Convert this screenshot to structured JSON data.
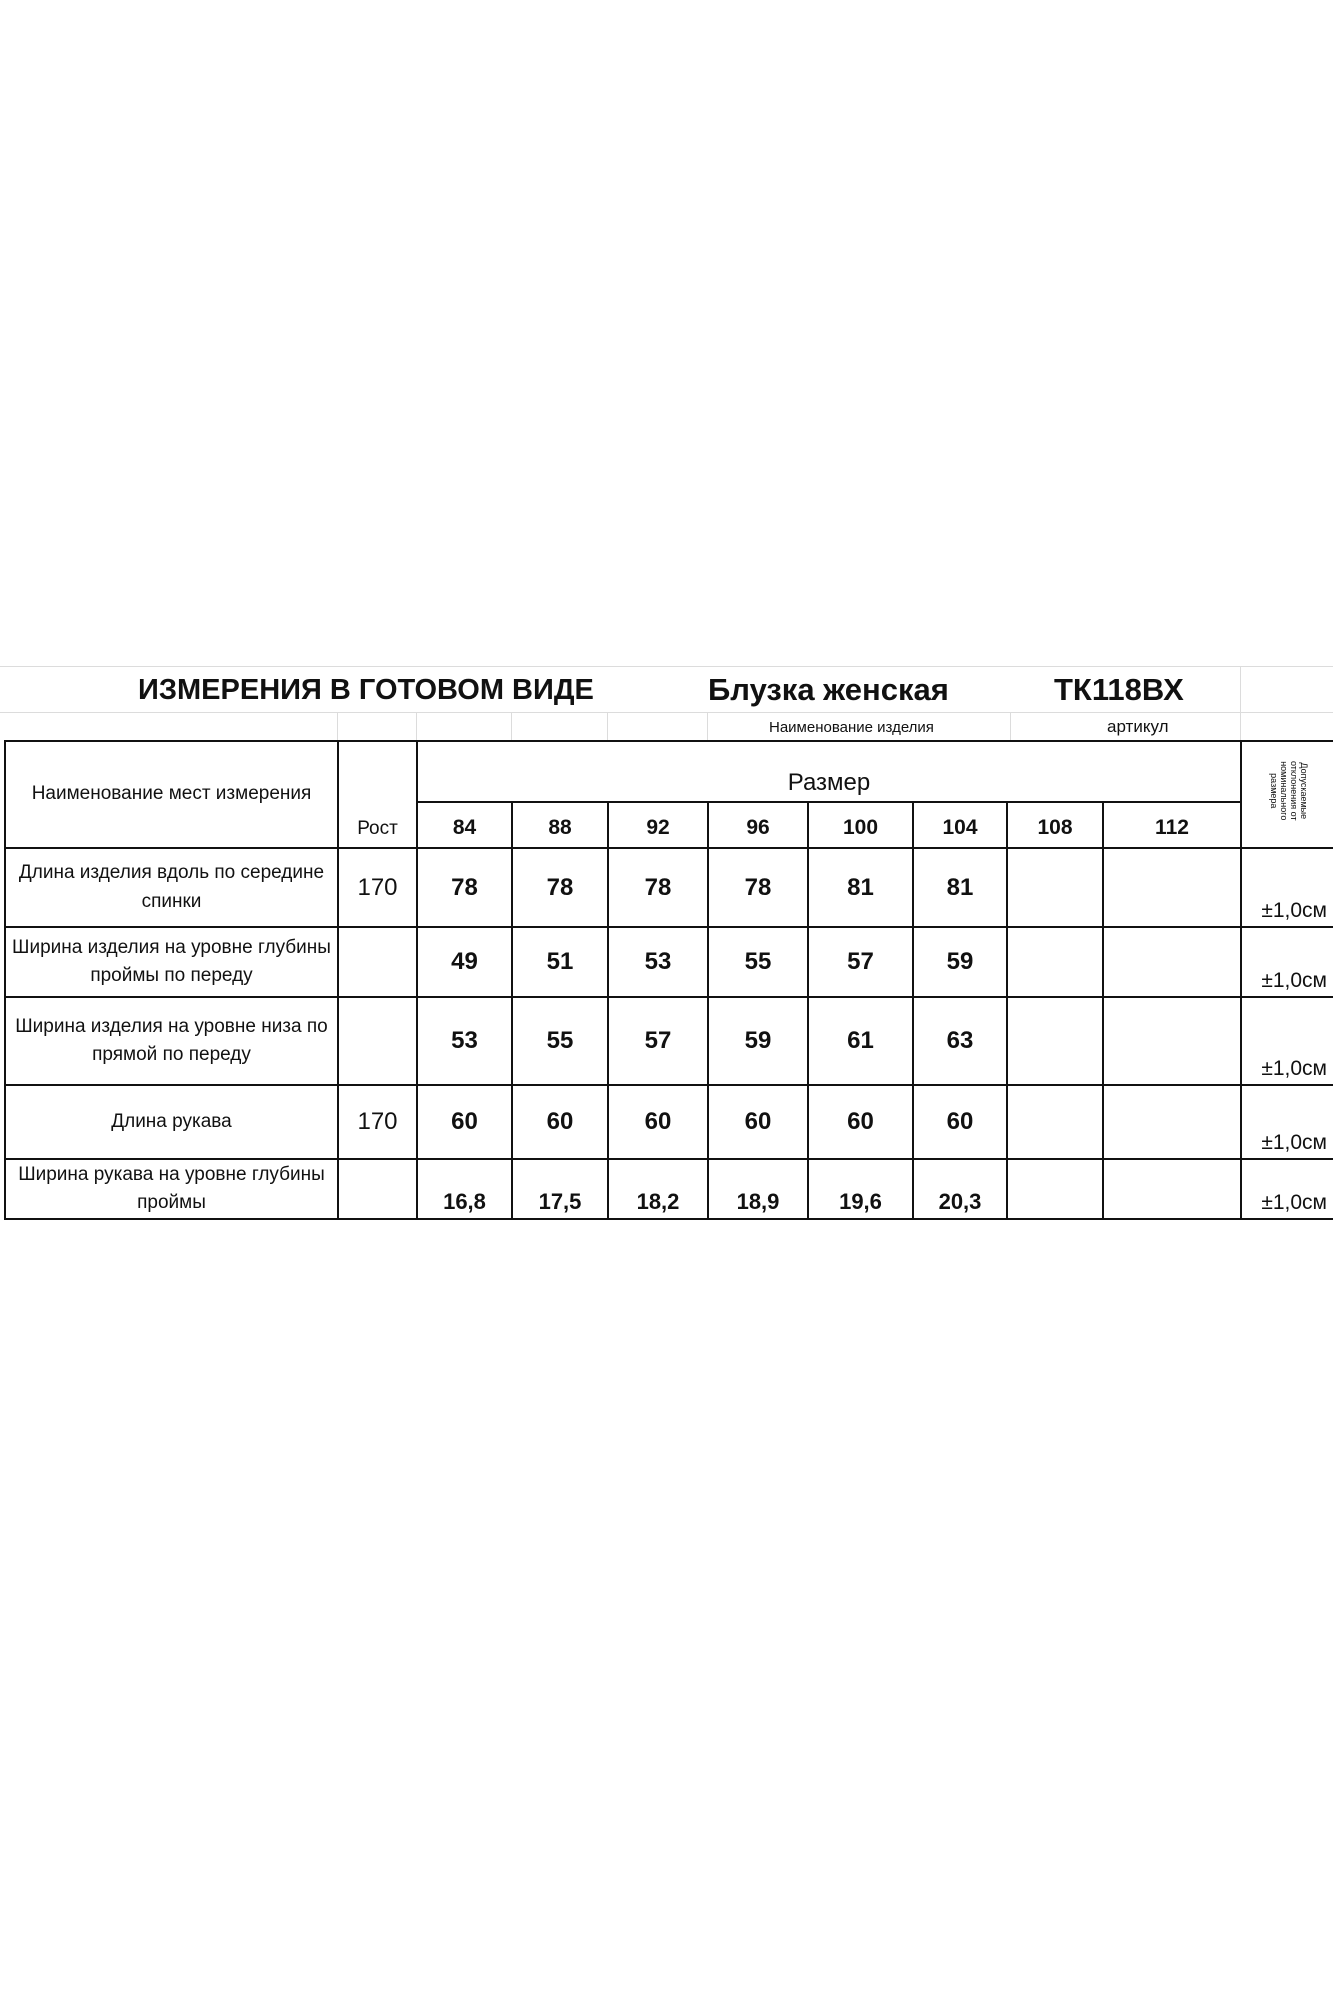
{
  "header": {
    "title": "ИЗМЕРЕНИЯ  В ГОТОВОМ  ВИДЕ",
    "product_name": "Блузка женская",
    "article": "ТК118ВХ",
    "product_name_label": "Наименование изделия",
    "article_label": "артикул"
  },
  "table": {
    "col_name": "Наименование мест измерения",
    "col_height": "Рост",
    "col_size": "Размер",
    "col_tolerance": "Допускаемые отклонения от номинального размера",
    "sizes": [
      "84",
      "88",
      "92",
      "96",
      "100",
      "104",
      "108",
      "112"
    ],
    "rows": [
      {
        "name": "Длина изделия вдоль по середине спинки",
        "height": "170",
        "values": [
          "78",
          "78",
          "78",
          "78",
          "81",
          "81",
          "",
          ""
        ],
        "tolerance": "±1,0см"
      },
      {
        "name": "Ширина изделия на уровне глубины проймы  по переду",
        "height": "",
        "values": [
          "49",
          "51",
          "53",
          "55",
          "57",
          "59",
          "",
          ""
        ],
        "tolerance": "±1,0см"
      },
      {
        "name": "Ширина изделия на уровне низа по прямой по переду",
        "height": "",
        "values": [
          "53",
          "55",
          "57",
          "59",
          "61",
          "63",
          "",
          ""
        ],
        "tolerance": "±1,0см"
      },
      {
        "name": "Длина рукава",
        "height": "170",
        "values": [
          "60",
          "60",
          "60",
          "60",
          "60",
          "60",
          "",
          ""
        ],
        "tolerance": "±1,0см"
      },
      {
        "name": "Ширина рукава на уровне глубины проймы",
        "height": "",
        "values": [
          "16,8",
          "17,5",
          "18,2",
          "18,9",
          "19,6",
          "20,3",
          "",
          ""
        ],
        "tolerance": "±1,0см"
      }
    ]
  }
}
